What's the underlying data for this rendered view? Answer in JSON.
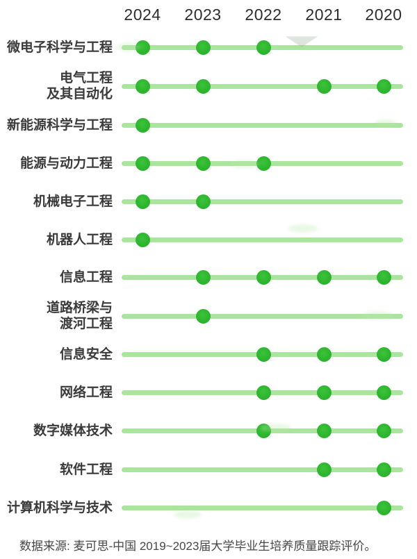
{
  "chart_data": {
    "type": "scatter",
    "title": "",
    "x_categories": [
      "2024",
      "2023",
      "2022",
      "2021",
      "2020"
    ],
    "legend_position": "none",
    "grid": false,
    "rows": [
      {
        "label": "微电子科学与工程",
        "label_lines": [
          "微电子科学与工程"
        ],
        "years": [
          "2024",
          "2023",
          "2022"
        ]
      },
      {
        "label": "电气工程及其自动化",
        "label_lines": [
          "电气工程",
          "及其自动化"
        ],
        "years": [
          "2024",
          "2023",
          "2021",
          "2020"
        ]
      },
      {
        "label": "新能源科学与工程",
        "label_lines": [
          "新能源科学与工程"
        ],
        "years": [
          "2024"
        ]
      },
      {
        "label": "能源与动力工程",
        "label_lines": [
          "能源与动力工程"
        ],
        "years": [
          "2024",
          "2023",
          "2022"
        ]
      },
      {
        "label": "机械电子工程",
        "label_lines": [
          "机械电子工程"
        ],
        "years": [
          "2024",
          "2023"
        ]
      },
      {
        "label": "机器人工程",
        "label_lines": [
          "机器人工程"
        ],
        "years": [
          "2024"
        ]
      },
      {
        "label": "信息工程",
        "label_lines": [
          "信息工程"
        ],
        "years": [
          "2023",
          "2022",
          "2021",
          "2020"
        ]
      },
      {
        "label": "道路桥梁与渡河工程",
        "label_lines": [
          "道路桥梁与",
          "渡河工程"
        ],
        "years": [
          "2023"
        ]
      },
      {
        "label": "信息安全",
        "label_lines": [
          "信息安全"
        ],
        "years": [
          "2022",
          "2021",
          "2020"
        ]
      },
      {
        "label": "网络工程",
        "label_lines": [
          "网络工程"
        ],
        "years": [
          "2022",
          "2021",
          "2020"
        ]
      },
      {
        "label": "数字媒体技术",
        "label_lines": [
          "数字媒体技术"
        ],
        "years": [
          "2022",
          "2021",
          "2020"
        ]
      },
      {
        "label": "软件工程",
        "label_lines": [
          "软件工程"
        ],
        "years": [
          "2021",
          "2020"
        ]
      },
      {
        "label": "计算机科学与技术",
        "label_lines": [
          "计算机科学与技术"
        ],
        "years": [
          "2020"
        ]
      }
    ]
  },
  "footer": {
    "text": "数据来源: 麦可思-中国 2019~2023届大学毕业生培养质量跟踪评价。"
  },
  "colors": {
    "dot_green": "#2db42d",
    "line_green": "#a9e59c",
    "year_text": "#2d2d2d",
    "label_text": "#3a3a3a",
    "footer_text": "#474747"
  }
}
